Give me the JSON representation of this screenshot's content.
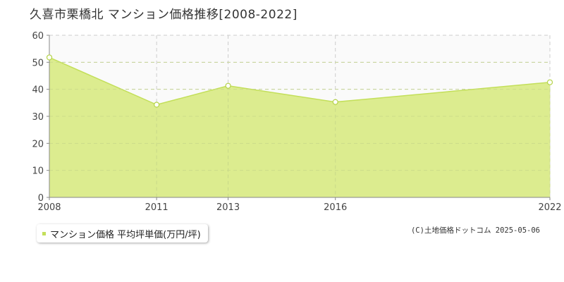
{
  "title": "久喜市栗橋北 マンション価格推移[2008-2022]",
  "legend": {
    "label": "マンション価格 平均坪単価(万円/坪)"
  },
  "credit": "(C)土地価格ドットコム 2025-05-06",
  "colors": {
    "fill": "#dcec8f",
    "line": "#c3df5a",
    "marker_stroke": "#b5d34a",
    "legend_swatch": "#c3df5a",
    "plot_background_top": "#fafafa",
    "gridline": "#cccccc",
    "axis": "#888888"
  },
  "chart_data": {
    "type": "area",
    "x": [
      "2008",
      "2011",
      "2013",
      "2016",
      "2022"
    ],
    "series": [
      {
        "name": "マンション価格 平均坪単価(万円/坪)",
        "values": [
          51.8,
          34.3,
          41.3,
          35.3,
          42.6
        ]
      }
    ],
    "xlabel": "",
    "ylabel": "",
    "ylim": [
      0,
      60
    ],
    "yticks": [
      "0",
      "10",
      "20",
      "30",
      "40",
      "50",
      "60"
    ],
    "grid": true,
    "legend_position": "bottom-left"
  }
}
